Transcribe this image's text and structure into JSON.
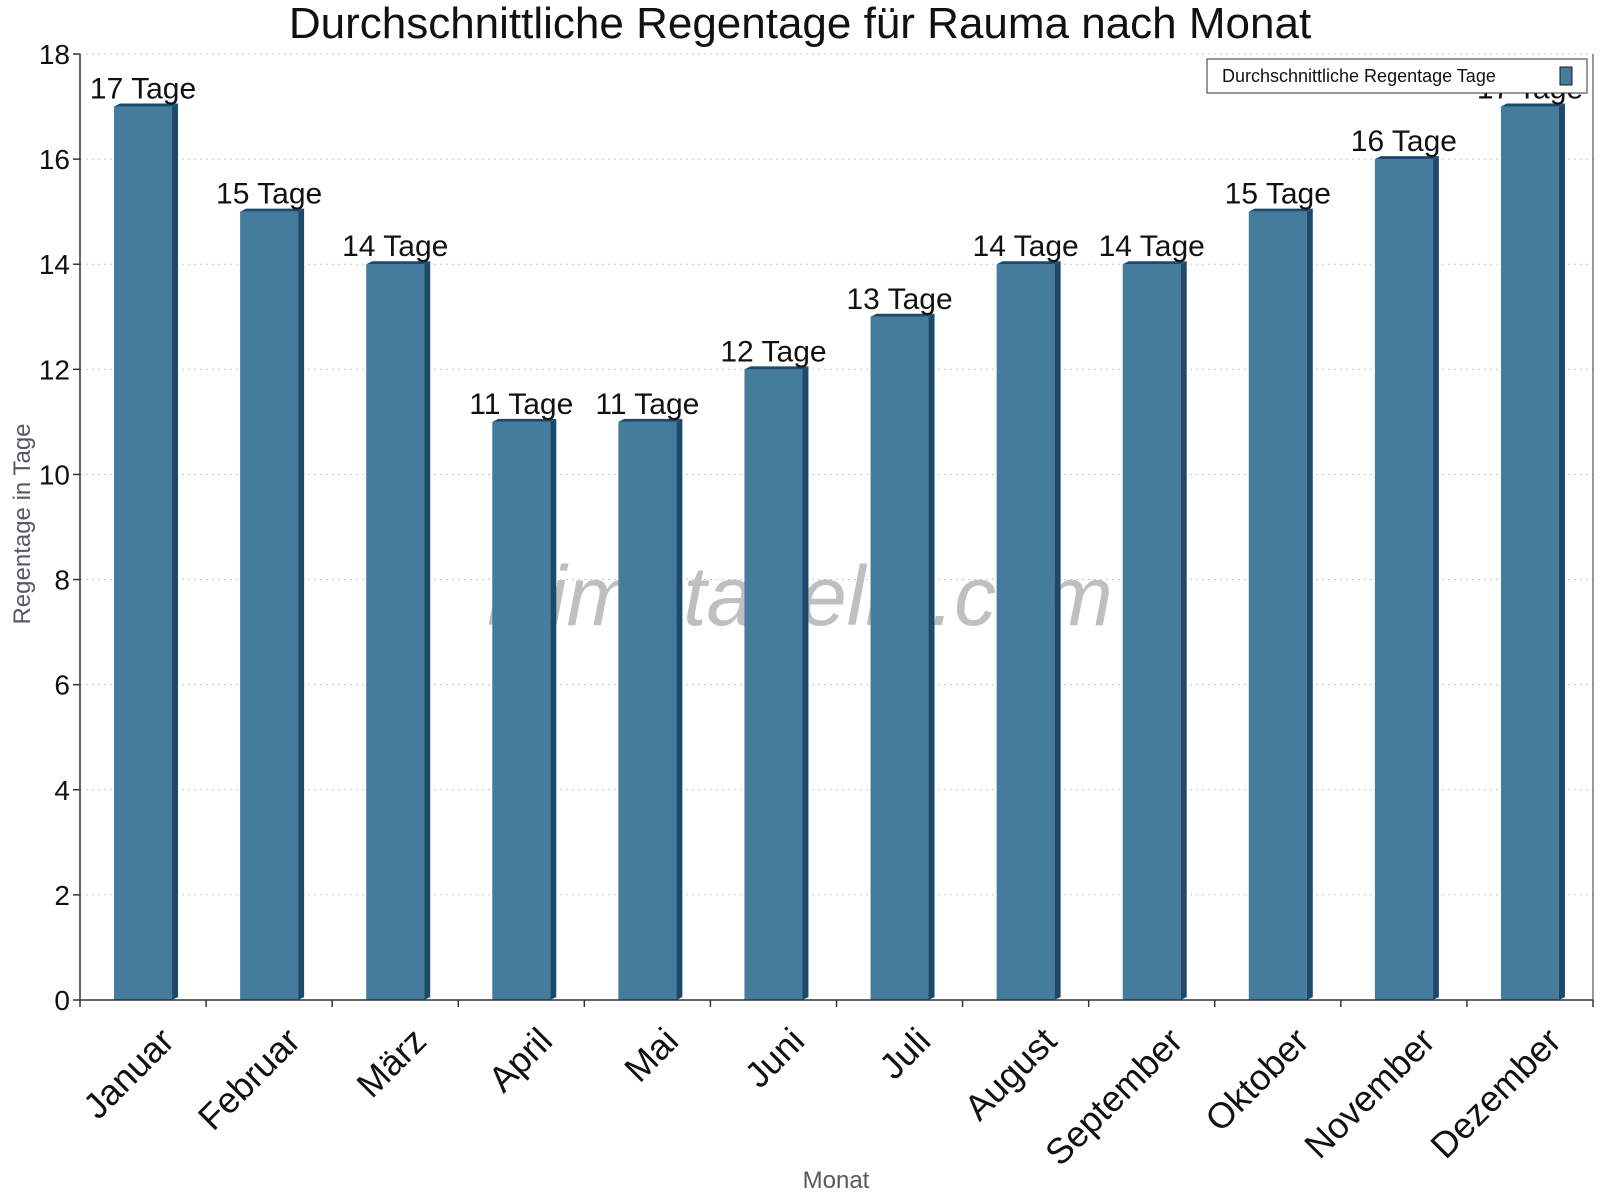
{
  "watermark": "klimatabelle.com",
  "chart_data": {
    "type": "bar",
    "title": "Durchschnittliche Regentage für Rauma nach Monat",
    "xlabel": "Monat",
    "ylabel": "Regentage in Tage",
    "ylim": [
      0,
      18
    ],
    "yticks": [
      0,
      2,
      4,
      6,
      8,
      10,
      12,
      14,
      16,
      18
    ],
    "grid": true,
    "legend_position": "top-right",
    "categories": [
      "Januar",
      "Februar",
      "März",
      "April",
      "Mai",
      "Juni",
      "Juli",
      "August",
      "September",
      "Oktober",
      "November",
      "Dezember"
    ],
    "series": [
      {
        "name": "Durchschnittliche Regentage Tage",
        "values": [
          17,
          15,
          14,
          11,
          11,
          12,
          13,
          14,
          14,
          15,
          16,
          17
        ],
        "labels": [
          "17 Tage",
          "15 Tage",
          "14 Tage",
          "11 Tage",
          "11 Tage",
          "12 Tage",
          "13 Tage",
          "14 Tage",
          "14 Tage",
          "15 Tage",
          "16 Tage",
          "17 Tage"
        ],
        "color": "#457b9d",
        "side_color": "#1d4a6b"
      }
    ]
  }
}
